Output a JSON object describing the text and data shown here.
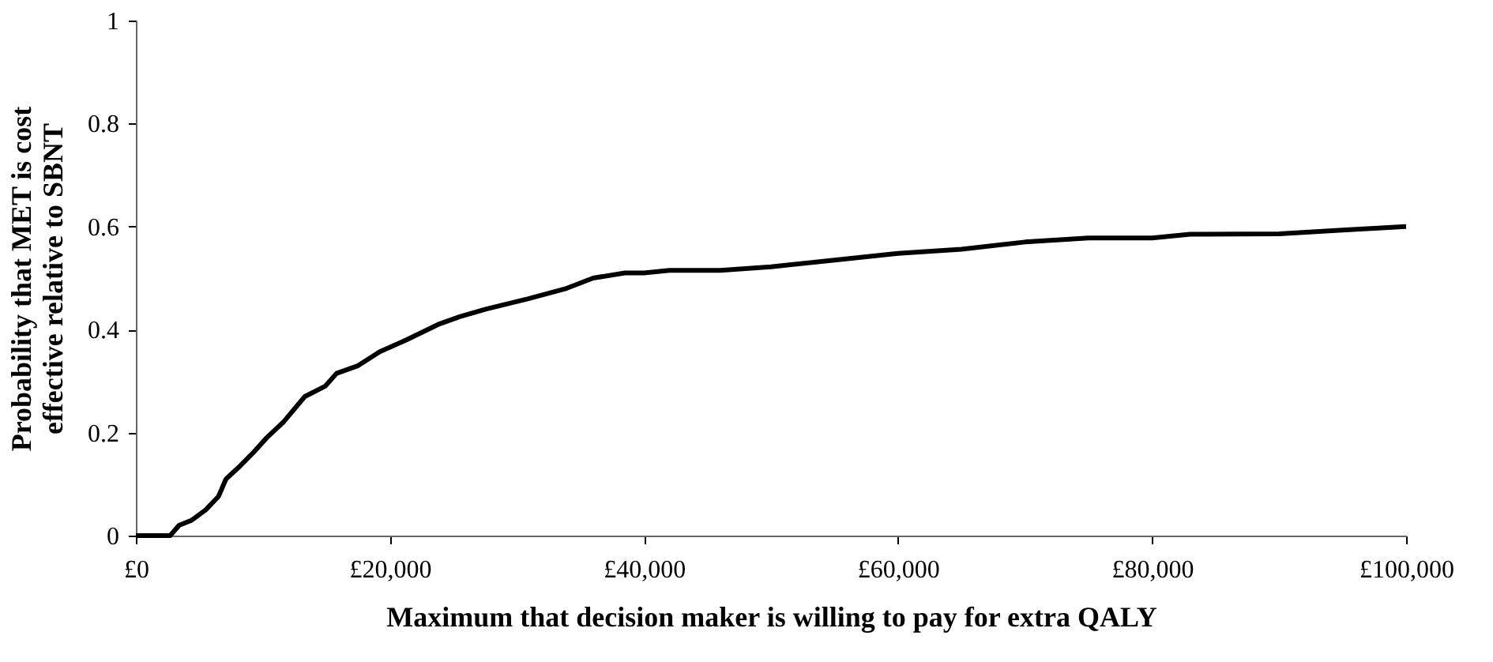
{
  "chart_data": {
    "type": "line",
    "xlabel": "Maximum that decision maker is willing to pay for extra QALY",
    "ylabel": "Probability that MET is cost\neffective relative to SBNT",
    "x": [
      0,
      2700,
      3400,
      4400,
      5500,
      6500,
      7100,
      8200,
      9200,
      10300,
      11600,
      13300,
      14900,
      15800,
      17500,
      19200,
      21300,
      23800,
      25500,
      27600,
      30900,
      33900,
      36000,
      38500,
      40000,
      42000,
      46000,
      50000,
      55000,
      60000,
      65000,
      70000,
      75000,
      80000,
      83000,
      90000,
      95000,
      100000
    ],
    "series": [
      {
        "color": "#000000",
        "values": [
          0,
          0,
          0.02,
          0.03,
          0.05,
          0.076,
          0.11,
          0.135,
          0.16,
          0.19,
          0.22,
          0.27,
          0.29,
          0.315,
          0.33,
          0.357,
          0.38,
          0.41,
          0.425,
          0.44,
          0.46,
          0.48,
          0.5,
          0.51,
          0.51,
          0.515,
          0.515,
          0.522,
          0.535,
          0.548,
          0.556,
          0.57,
          0.578,
          0.578,
          0.585,
          0.586,
          0.593,
          0.6
        ]
      }
    ],
    "xlim": [
      0,
      100000
    ],
    "xticks": [
      {
        "value": 0,
        "label": "£0"
      },
      {
        "value": 20000,
        "label": "£20,000"
      },
      {
        "value": 40000,
        "label": "£40,000"
      },
      {
        "value": 60000,
        "label": "£60,000"
      },
      {
        "value": 80000,
        "label": "£80,000"
      },
      {
        "value": 100000,
        "label": "£100,000"
      }
    ],
    "ylim": [
      0,
      1
    ],
    "yticks": [
      0,
      0.2,
      0.4,
      0.6,
      0.8,
      1
    ],
    "grid": false,
    "marker": "none",
    "line_style": "solid"
  }
}
